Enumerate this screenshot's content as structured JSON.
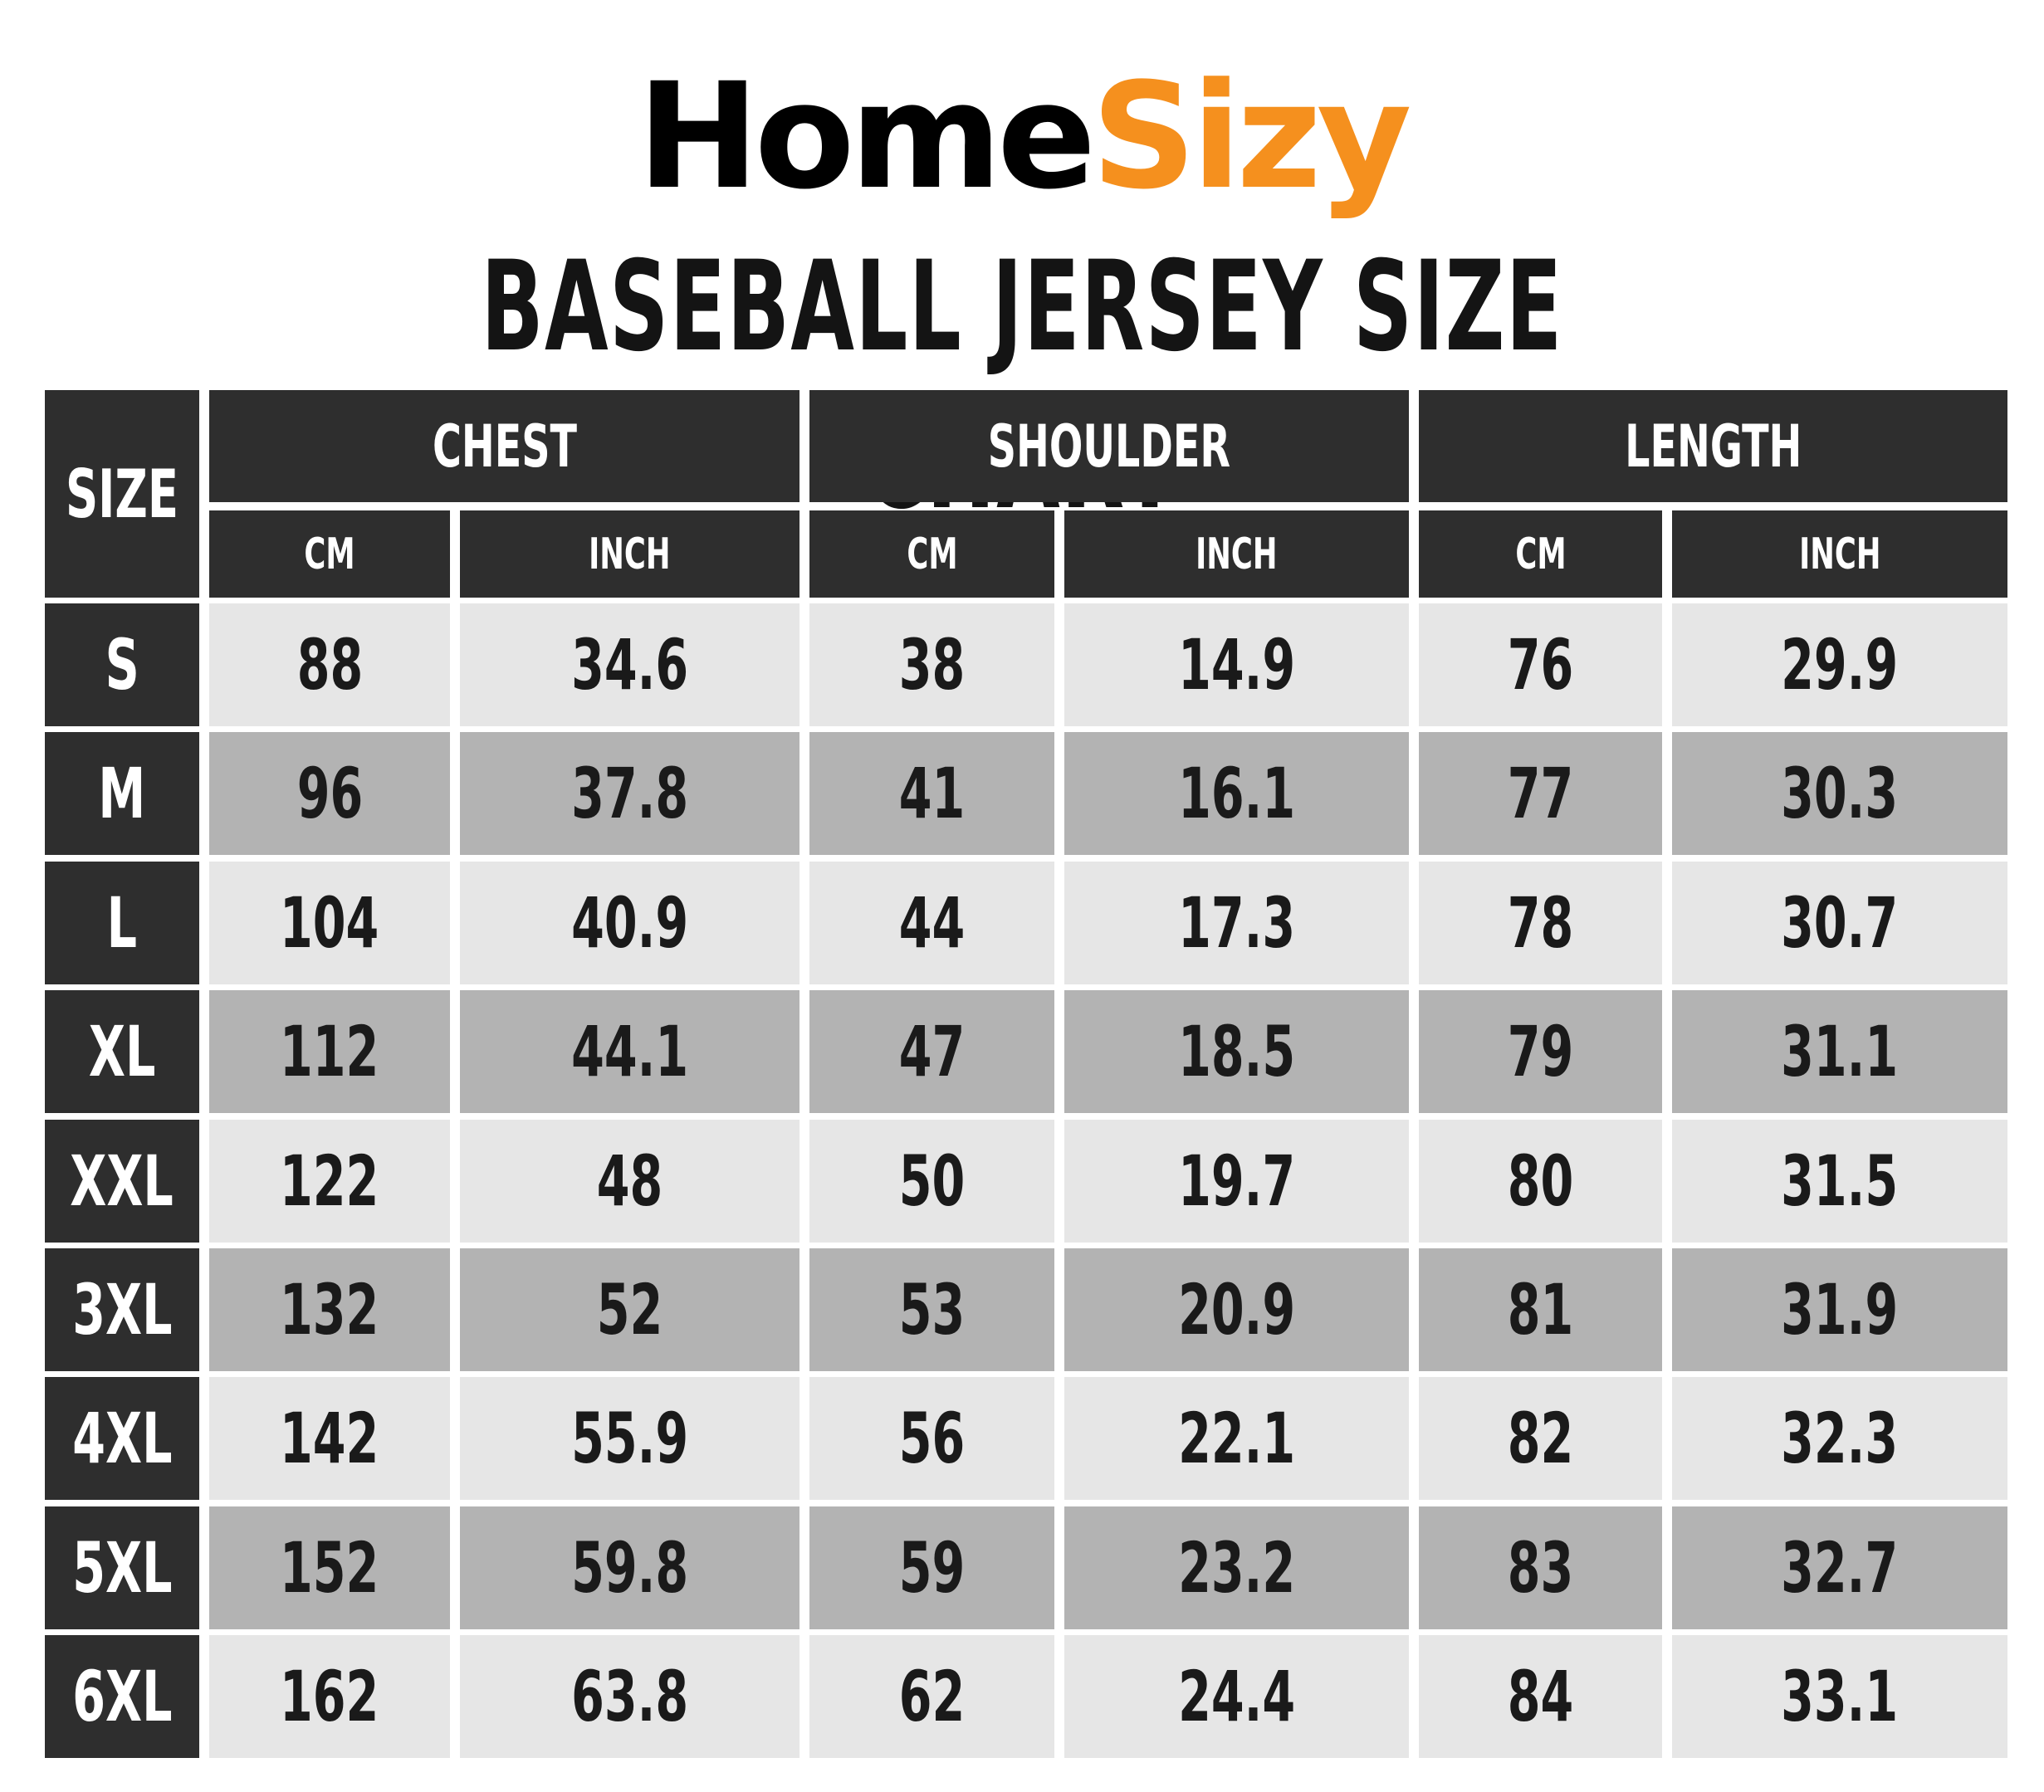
{
  "brand": {
    "part1": "Home",
    "part2": "Sizy",
    "accent_color": "#f5901e"
  },
  "title": "BASEBALL JERSEY SIZE CHART",
  "table": {
    "size_header": "SIZE",
    "groups": [
      {
        "label": "CHEST",
        "units": [
          "CM",
          "INCH"
        ]
      },
      {
        "label": "SHOULDER",
        "units": [
          "CM",
          "INCH"
        ]
      },
      {
        "label": "LENGTH",
        "units": [
          "CM",
          "INCH"
        ]
      }
    ],
    "rows": [
      {
        "size": "S",
        "values": [
          "88",
          "34.6",
          "38",
          "14.9",
          "76",
          "29.9"
        ]
      },
      {
        "size": "M",
        "values": [
          "96",
          "37.8",
          "41",
          "16.1",
          "77",
          "30.3"
        ]
      },
      {
        "size": "L",
        "values": [
          "104",
          "40.9",
          "44",
          "17.3",
          "78",
          "30.7"
        ]
      },
      {
        "size": "XL",
        "values": [
          "112",
          "44.1",
          "47",
          "18.5",
          "79",
          "31.1"
        ]
      },
      {
        "size": "XXL",
        "values": [
          "122",
          "48",
          "50",
          "19.7",
          "80",
          "31.5"
        ]
      },
      {
        "size": "3XL",
        "values": [
          "132",
          "52",
          "53",
          "20.9",
          "81",
          "31.9"
        ]
      },
      {
        "size": "4XL",
        "values": [
          "142",
          "55.9",
          "56",
          "22.1",
          "82",
          "32.3"
        ]
      },
      {
        "size": "5XL",
        "values": [
          "152",
          "59.8",
          "59",
          "23.2",
          "83",
          "32.7"
        ]
      },
      {
        "size": "6XL",
        "values": [
          "162",
          "63.8",
          "62",
          "24.4",
          "84",
          "33.1"
        ]
      }
    ],
    "colors": {
      "header": "#2e2e2e",
      "row_light": "#e6e6e6",
      "row_dark": "#b3b3b3"
    }
  }
}
